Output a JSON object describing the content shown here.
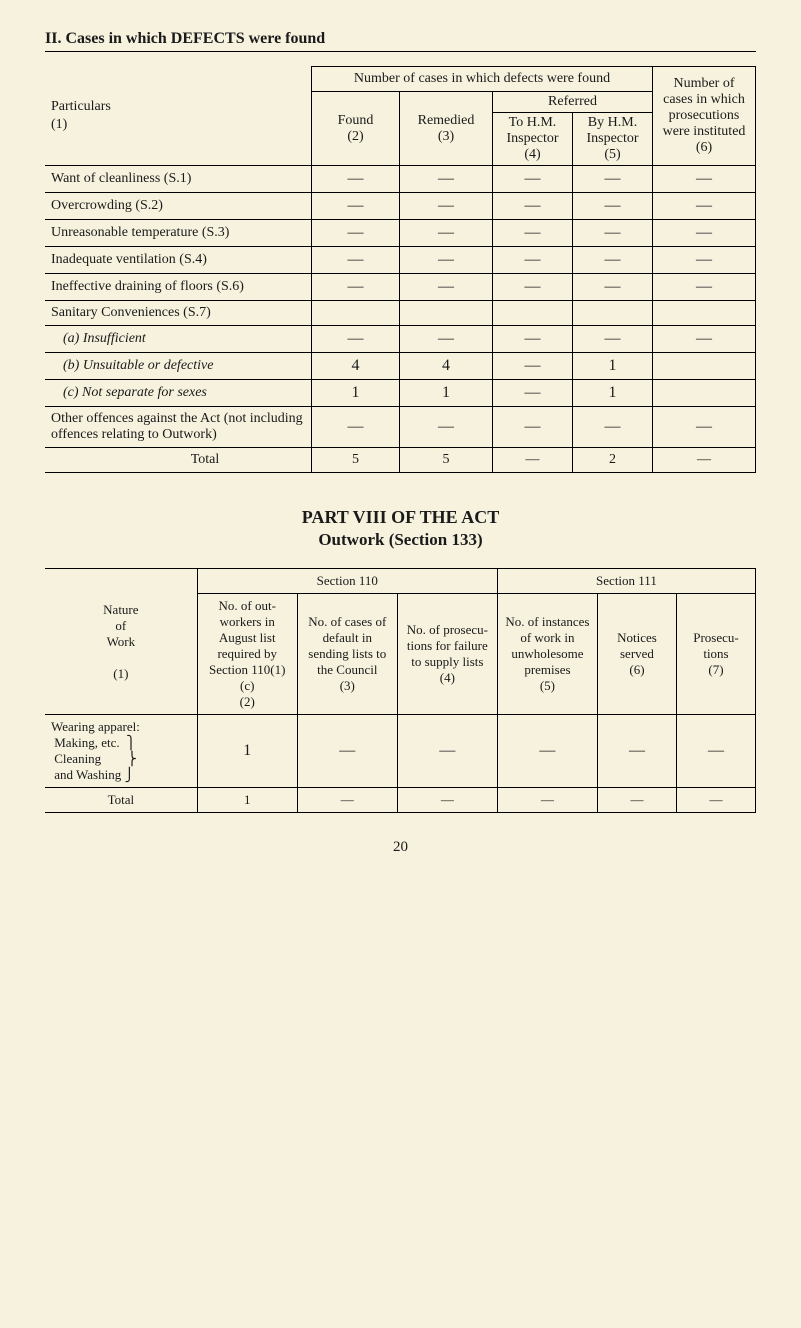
{
  "page": {
    "main_title": "II. Cases in which DEFECTS were found",
    "page_number": "20"
  },
  "table1": {
    "headers": {
      "numbercases": "Number of cases in which defects were found",
      "numberprosec": "Number of cases in which prosecu­tions were instituted",
      "particulars": "Particulars",
      "found": "Found",
      "remedied": "Remedied",
      "referred": "Referred",
      "tohm": "To H.M. Inspector",
      "byhm": "By H.M. Inspector",
      "col1": "(1)",
      "col2": "(2)",
      "col3": "(3)",
      "col4": "(4)",
      "col5": "(5)",
      "col6": "(6)"
    },
    "rows": [
      {
        "label": "Want of cleanliness (S.1)",
        "indent": 0,
        "c2": "—",
        "c3": "—",
        "c4": "—",
        "c5": "—",
        "c6": "—"
      },
      {
        "label": "Overcrowding (S.2)",
        "indent": 0,
        "c2": "—",
        "c3": "—",
        "c4": "—",
        "c5": "—",
        "c6": "—"
      },
      {
        "label": "Unreasonable temperature (S.3)",
        "indent": 0,
        "c2": "—",
        "c3": "—",
        "c4": "—",
        "c5": "—",
        "c6": "—"
      },
      {
        "label": "Inadequate ventilation (S.4)",
        "indent": 0,
        "c2": "—",
        "c3": "—",
        "c4": "—",
        "c5": "—",
        "c6": "—"
      },
      {
        "label": "Ineffective draining of floors (S.6)",
        "indent": 0,
        "c2": "—",
        "c3": "—",
        "c4": "—",
        "c5": "—",
        "c6": "—"
      },
      {
        "label": "Sanitary Conveniences (S.7)",
        "indent": 0,
        "c2": "",
        "c3": "",
        "c4": "",
        "c5": "",
        "c6": "",
        "nob": true
      },
      {
        "label": "(a) Insufficient",
        "indent": 1,
        "c2": "—",
        "c3": "—",
        "c4": "—",
        "c5": "—",
        "c6": "—",
        "ital": true
      },
      {
        "label": "(b) Unsuitable or defective",
        "indent": 1,
        "c2": "4",
        "c3": "4",
        "c4": "—",
        "c5": "1",
        "c6": "",
        "ital": true
      },
      {
        "label": "(c) Not separate for sexes",
        "indent": 1,
        "c2": "1",
        "c3": "1",
        "c4": "—",
        "c5": "1",
        "c6": "",
        "ital": true
      },
      {
        "label": "Other offences against the Act (not including of­fences relating to Out­work)",
        "indent": 0,
        "c2": "—",
        "c3": "—",
        "c4": "—",
        "c5": "—",
        "c6": "—"
      }
    ],
    "total": {
      "label": "Total",
      "c2": "5",
      "c3": "5",
      "c4": "—",
      "c5": "2",
      "c6": "—"
    }
  },
  "part": {
    "title": "PART VIII OF THE ACT",
    "subtitle": "Outwork (Section 133)"
  },
  "table2": {
    "headers": {
      "sec110": "Section 110",
      "sec111": "Section 111",
      "nature": "Nature of Work",
      "h2": "No. of out­workers in August list required by Section 110(1)(c)",
      "h3": "No. of cases of default in sending lists to the Council",
      "h4": "No. of prosecu­tions for failure to supply lists",
      "h5": "No. of instances of work in unwhole­some premises",
      "h6": "Notices served",
      "h7": "Prosecu­tions",
      "c1": "(1)",
      "c2": "(2)",
      "c3": "(3)",
      "c4": "(4)",
      "c5": "(5)",
      "c6": "(6)",
      "c7": "(7)"
    },
    "rows": [
      {
        "label": "Wearing apparel: Making, etc. Cleaning and Washing",
        "c2": "1",
        "c3": "—",
        "c4": "—",
        "c5": "—",
        "c6": "—",
        "c7": "—"
      }
    ],
    "total": {
      "label": "Total",
      "c2": "1",
      "c3": "—",
      "c4": "—",
      "c5": "—",
      "c6": "—",
      "c7": "—"
    }
  }
}
